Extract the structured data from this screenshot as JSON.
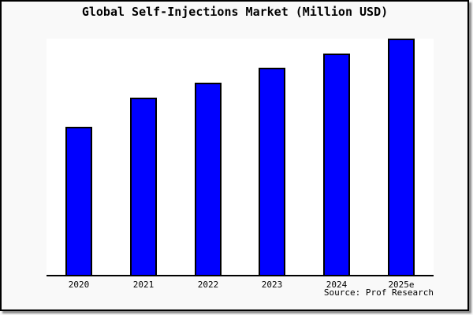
{
  "source_note": "Source: Prof Research",
  "colors": {
    "page_background": "#f9f9f9",
    "plot_background": "#ffffff",
    "bar_fill": "#0000ff",
    "bar_border": "#000000",
    "axis": "#000000",
    "text": "#000000",
    "frame_border": "#000000"
  },
  "chart_data": {
    "type": "bar",
    "title": "Global Self-Injections Market (Million USD)",
    "categories": [
      "2020",
      "2021",
      "2022",
      "2023",
      "2024",
      "2025e"
    ],
    "values": [
      62.7,
      75.0,
      81.3,
      87.7,
      93.7,
      100.0
    ],
    "value_scale": "relative index estimated from bar heights; no y-axis tick labels are shown (2025e bar = 100)",
    "xlabel": "",
    "ylabel": "",
    "ylim": [
      0,
      100
    ],
    "grid": false,
    "legend": false,
    "annotations": [
      "Source: Prof Research"
    ]
  }
}
